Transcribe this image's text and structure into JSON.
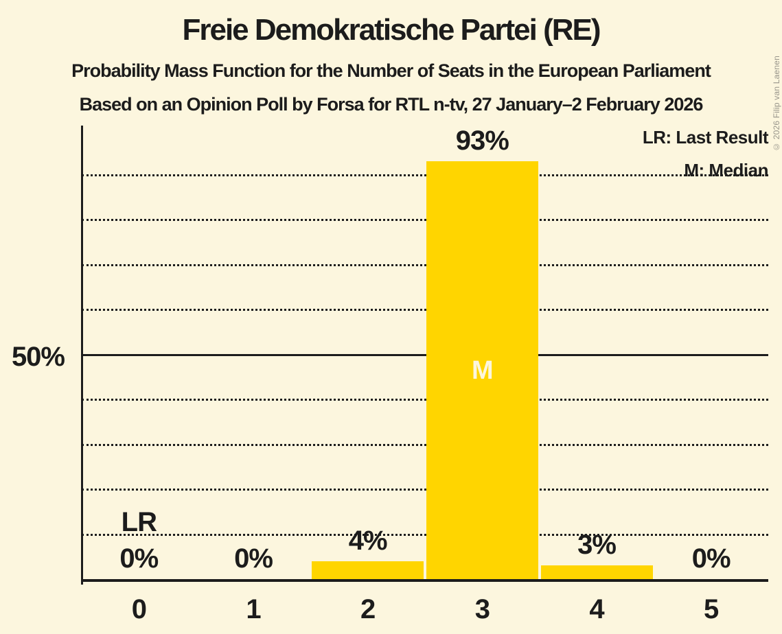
{
  "title": "Freie Demokratische Partei (RE)",
  "subtitle": "Probability Mass Function for the Number of Seats in the European Parliament",
  "poll_info": "Based on an Opinion Poll by Forsa for RTL n-tv, 27 January–2 February 2026",
  "copyright": "© 2026 Filip van Laenen",
  "legend": {
    "last_result": "LR: Last Result",
    "median": "M: Median"
  },
  "y_axis": {
    "tick_label": "50%",
    "tick_value": 50
  },
  "colors": {
    "background": "#FCF6DE",
    "bar": "#FFD500",
    "text": "#1C1C1C",
    "median_label": "#FCF6DE",
    "grid": "#1C1C1C",
    "copyright": "#97948A"
  },
  "chart_data": {
    "type": "bar",
    "title": "Probability Mass Function for the Number of Seats in the European Parliament",
    "categories": [
      "0",
      "1",
      "2",
      "3",
      "4",
      "5"
    ],
    "values": [
      0,
      0,
      4,
      93,
      3,
      0
    ],
    "value_labels": [
      "0%",
      "0%",
      "4%",
      "93%",
      "3%",
      "0%"
    ],
    "ylim": [
      0,
      101
    ],
    "grid": "dotted-horizontal",
    "gridlines_percent": [
      10,
      20,
      30,
      40,
      50,
      60,
      70,
      80,
      90
    ],
    "solid_gridline_percent": 50,
    "legend_position": "top-right",
    "median_category": "3",
    "median_marker": "M",
    "last_result_category": "0",
    "last_result_marker": "LR"
  }
}
